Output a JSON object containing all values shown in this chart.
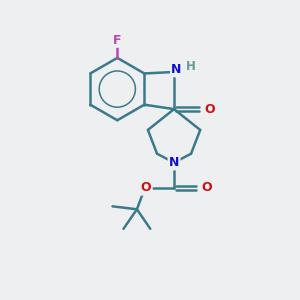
{
  "background_color": "#eeeff0",
  "bond_color": "#3a7a8a",
  "bond_width": 1.8,
  "atom_colors": {
    "F": "#bb44bb",
    "N": "#1111cc",
    "O": "#cc1111",
    "H": "#669999",
    "C": "#3a7a8a"
  },
  "figsize": [
    3.0,
    3.0
  ],
  "dpi": 100
}
